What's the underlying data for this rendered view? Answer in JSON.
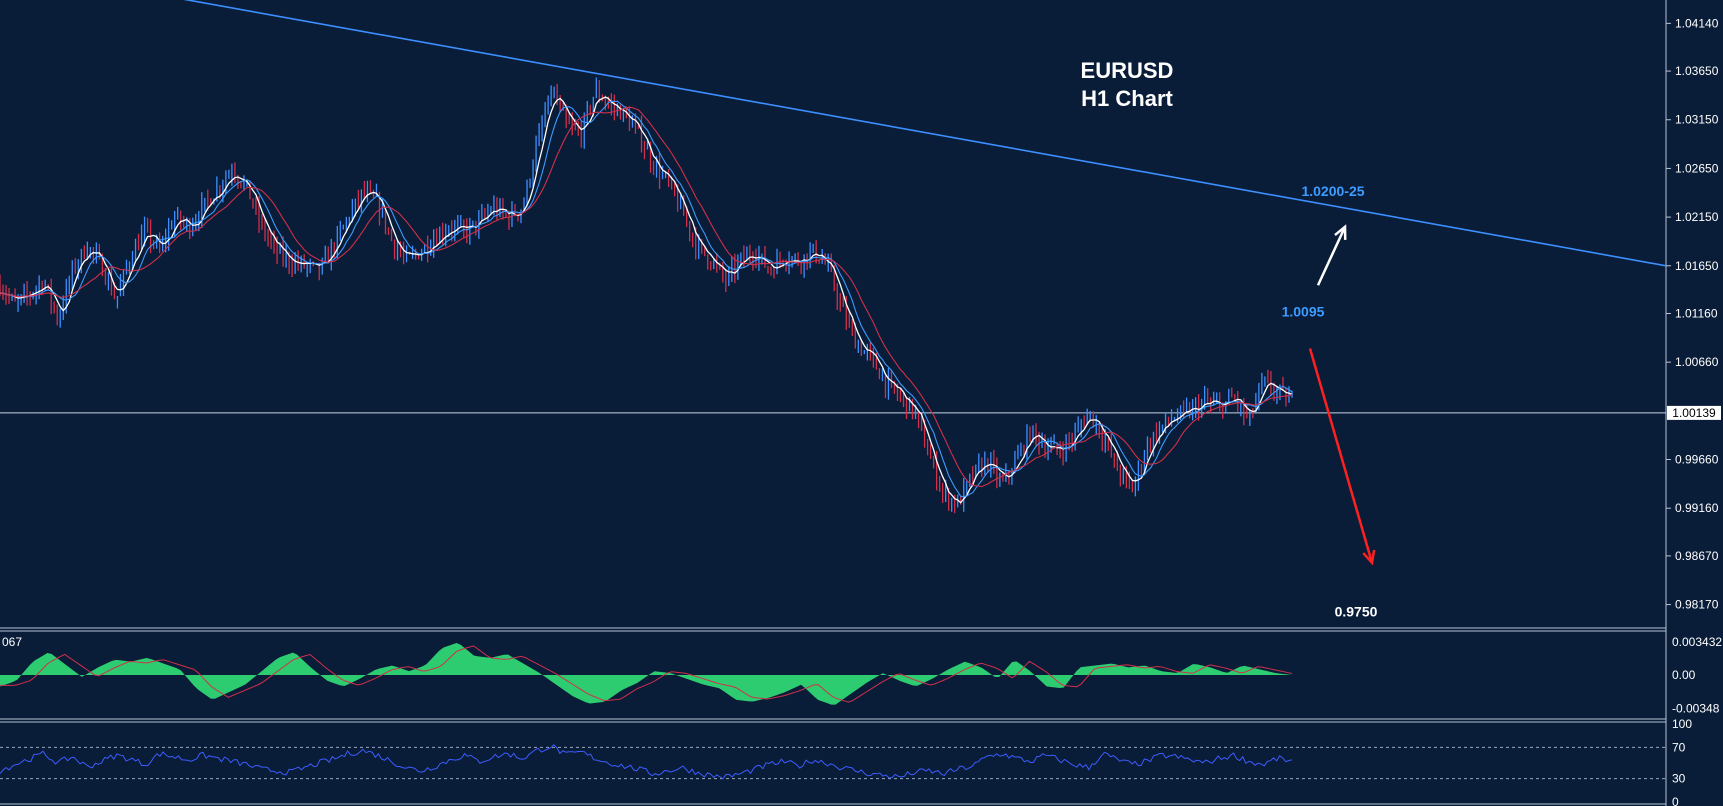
{
  "chart_data": [
    {
      "type": "candlestick",
      "title": "EURUSD",
      "subtitle": "H1 Chart",
      "price_axis": {
        "ticks": [
          "1.04140",
          "1.03650",
          "1.03150",
          "1.02650",
          "1.02150",
          "1.01650",
          "1.01160",
          "1.00660",
          "0.99660",
          "0.99160",
          "0.98670",
          "0.98170"
        ],
        "current_price": "1.00139",
        "ylim": [
          0.9795,
          1.0438
        ]
      },
      "price_path": [
        1.0145,
        1.0125,
        1.0135,
        1.015,
        1.011,
        1.016,
        1.0185,
        1.0165,
        1.013,
        1.0175,
        1.02,
        1.018,
        1.0215,
        1.0205,
        1.0225,
        1.0245,
        1.0265,
        1.0245,
        1.0205,
        1.018,
        1.017,
        1.0165,
        1.016,
        1.0185,
        1.0215,
        1.024,
        1.023,
        1.019,
        1.017,
        1.018,
        1.0195,
        1.0205,
        1.02,
        1.021,
        1.0225,
        1.0215,
        1.0225,
        1.029,
        1.0345,
        1.031,
        1.03,
        1.0345,
        1.033,
        1.032,
        1.03,
        1.027,
        1.025,
        1.022,
        1.0185,
        1.017,
        1.015,
        1.017,
        1.018,
        1.016,
        1.0175,
        1.017,
        1.018,
        1.0165,
        1.012,
        1.0085,
        1.007,
        1.0045,
        1.003,
        1.0015,
        0.997,
        0.993,
        0.992,
        0.995,
        0.9965,
        0.994,
        0.9965,
        0.9995,
        0.998,
        0.9975,
        0.999,
        1.0015,
        0.999,
        0.9955,
        0.9935,
        0.998,
        1.0,
        1.001,
        1.0015,
        1.0025,
        1.002,
        1.003,
        1.0005,
        1.0045,
        1.0035,
        1.0025
      ],
      "trendline": {
        "label": "1.0200-25",
        "from_price": 1.0445,
        "to_price": 1.0165
      },
      "annotations": [
        {
          "text": "1.0095",
          "price": 1.0118,
          "color": "#3d9cff"
        },
        {
          "text": "0.9750",
          "price": 0.981,
          "color": "#ffffff"
        }
      ],
      "arrows": [
        {
          "direction": "up",
          "color": "#ffffff",
          "from_price": 1.0145,
          "to_price": 1.0205
        },
        {
          "direction": "down",
          "color": "#ff2020",
          "from_price": 1.008,
          "to_price": 0.986
        }
      ],
      "legend": "none",
      "grid": false
    },
    {
      "type": "histogram",
      "label": "067",
      "ticks": [
        "0.003432",
        "0.00",
        "-0.00348"
      ],
      "ylim": [
        -0.0045,
        0.0045
      ],
      "values": [
        -0.0012,
        -0.0006,
        0.0014,
        0.0024,
        0.0011,
        -0.0002,
        0.0008,
        0.0016,
        0.0014,
        0.0018,
        0.0012,
        0.0006,
        -0.0014,
        -0.0026,
        -0.0018,
        -0.001,
        0.0004,
        0.0018,
        0.0024,
        0.0008,
        -0.0006,
        -0.0012,
        -0.0004,
        0.0006,
        0.001,
        0.0004,
        0.001,
        0.0028,
        0.0034,
        0.002,
        0.0018,
        0.0022,
        0.0012,
        0.0002,
        -0.001,
        -0.0022,
        -0.003,
        -0.0028,
        -0.0016,
        -0.0008,
        0.0004,
        0.0002,
        -0.0004,
        -0.001,
        -0.0014,
        -0.0026,
        -0.0028,
        -0.0024,
        -0.0018,
        -0.001,
        -0.0026,
        -0.0032,
        -0.002,
        -0.0008,
        0.0002,
        -0.0006,
        -0.0012,
        -0.0004,
        0.0006,
        0.0014,
        0.0008,
        -0.0004,
        0.0016,
        0.0004,
        -0.0012,
        -0.0014,
        0.0008,
        0.001,
        0.0012,
        0.0008,
        0.001,
        0.0004,
        0.0002,
        0.0012,
        0.0008,
        0.0002,
        0.001,
        0.0006,
        0.0002,
        0.0
      ]
    },
    {
      "type": "line",
      "ticks": [
        "100",
        "70",
        "30",
        "0"
      ],
      "levels": [
        70,
        30
      ],
      "ylim": [
        0,
        100
      ],
      "values": [
        40,
        48,
        55,
        62,
        50,
        58,
        45,
        52,
        60,
        55,
        48,
        62,
        58,
        54,
        60,
        56,
        52,
        48,
        42,
        40,
        38,
        44,
        50,
        55,
        62,
        66,
        60,
        52,
        44,
        40,
        46,
        54,
        60,
        52,
        58,
        62,
        56,
        66,
        72,
        60,
        64,
        56,
        50,
        46,
        42,
        36,
        40,
        44,
        38,
        34,
        32,
        36,
        42,
        48,
        52,
        46,
        54,
        50,
        44,
        40,
        36,
        34,
        32,
        38,
        40,
        36,
        42,
        46,
        58,
        62,
        56,
        52,
        60,
        54,
        48,
        44,
        62,
        54,
        48,
        52,
        60,
        58,
        54,
        50,
        56,
        60,
        52,
        48,
        56,
        52
      ]
    }
  ]
}
